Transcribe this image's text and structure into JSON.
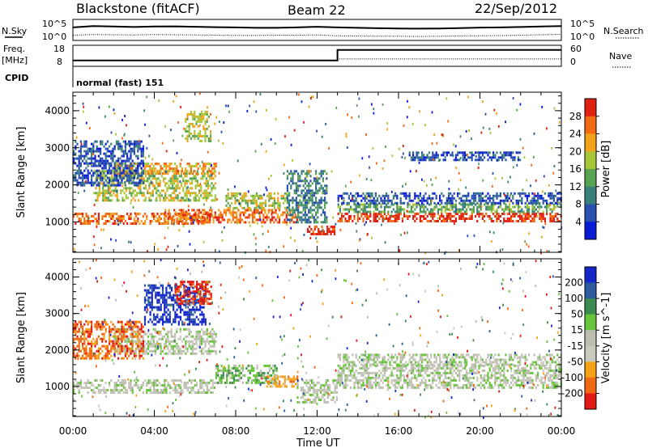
{
  "header": {
    "station": "Blackstone (fitACF)",
    "beam": "Beam 22",
    "date": "22/Sep/2012"
  },
  "top_panels": {
    "nsky_label": "N.Sky",
    "nsearch_label": "N.Search",
    "nsky_tick_hi": "10^5",
    "nsky_tick_lo": "10^0",
    "nsearch_tick_hi": "10^5",
    "nsearch_tick_lo": "10^0",
    "freq_label_1": "Freq.",
    "freq_label_2": "[MHz]",
    "freq_tick_hi": "18",
    "freq_tick_lo": "8",
    "nave_label": "Nave",
    "nave_tick_hi": "60",
    "nave_tick_lo": "0",
    "cpid_label": "CPID",
    "cpid_text": "normal (fast) 151"
  },
  "chart_data": [
    {
      "type": "heatmap",
      "name": "power",
      "ylabel": "Slant Range [km]",
      "xlabel": "Time UT",
      "x_ticks": [
        "00:00",
        "04:00",
        "08:00",
        "12:00",
        "16:00",
        "20:00",
        "00:00"
      ],
      "y_ticks": [
        1000,
        2000,
        3000,
        4000
      ],
      "xlim_hours": [
        0,
        24
      ],
      "ylim_km": [
        180,
        4500
      ],
      "colorbar": {
        "label": "Power [dB]",
        "ticks": [
          "4",
          "8",
          "12",
          "16",
          "20",
          "24",
          "28"
        ],
        "colors": [
          "#0a1bd6",
          "#2a4fb0",
          "#3a7f7a",
          "#58a352",
          "#a8c63a",
          "#f2a21c",
          "#f26a12",
          "#e02010"
        ]
      },
      "bands": [
        {
          "t0": 0.0,
          "t1": 6.8,
          "r0": 950,
          "r1": 1250,
          "level": 6
        },
        {
          "t0": 1.0,
          "t1": 7.0,
          "r0": 1600,
          "r1": 2400,
          "level": 4
        },
        {
          "t0": 2.0,
          "t1": 7.0,
          "r0": 2300,
          "r1": 2600,
          "level": 5
        },
        {
          "t0": 5.5,
          "t1": 6.8,
          "r0": 3200,
          "r1": 4000,
          "level": 4
        },
        {
          "t0": 0.0,
          "t1": 3.5,
          "r0": 2000,
          "r1": 3200,
          "level": 1
        },
        {
          "t0": 4.5,
          "t1": 11.0,
          "r0": 1000,
          "r1": 1350,
          "level": 6
        },
        {
          "t0": 7.5,
          "t1": 10.5,
          "r0": 1400,
          "r1": 1800,
          "level": 4
        },
        {
          "t0": 11.5,
          "t1": 13.0,
          "r0": 650,
          "r1": 900,
          "level": 7
        },
        {
          "t0": 10.5,
          "t1": 12.5,
          "r0": 1000,
          "r1": 2400,
          "level": 2
        },
        {
          "t0": 13.0,
          "t1": 24.0,
          "r0": 1000,
          "r1": 1250,
          "level": 7
        },
        {
          "t0": 13.0,
          "t1": 24.0,
          "r0": 1250,
          "r1": 1500,
          "level": 3
        },
        {
          "t0": 13.0,
          "t1": 24.0,
          "r0": 1500,
          "r1": 1800,
          "level": 1
        },
        {
          "t0": 16.5,
          "t1": 22.0,
          "r0": 2700,
          "r1": 2900,
          "level": 1
        }
      ]
    },
    {
      "type": "heatmap",
      "name": "velocity",
      "ylabel": "Slant Range [km]",
      "xlabel": "Time UT",
      "x_ticks": [
        "00:00",
        "04:00",
        "08:00",
        "12:00",
        "16:00",
        "20:00",
        "00:00"
      ],
      "y_ticks": [
        1000,
        2000,
        3000,
        4000
      ],
      "xlim_hours": [
        0,
        24
      ],
      "ylim_km": [
        180,
        4500
      ],
      "colorbar": {
        "label": "Velocity [m s^-1]",
        "ticks": [
          "200",
          "100",
          "50",
          "15",
          "-15",
          "-50",
          "-100",
          "-200"
        ],
        "colors": [
          "#1426c8",
          "#2b5a9e",
          "#3d8a50",
          "#68c43a",
          "#bdbdb2",
          "#c9c9bd",
          "#f5a216",
          "#f06812",
          "#e01a12"
        ]
      },
      "bands": [
        {
          "t0": 0.0,
          "t1": 7.0,
          "r0": 850,
          "r1": 1200,
          "level": 4
        },
        {
          "t0": 2.0,
          "t1": 7.0,
          "r0": 1900,
          "r1": 2600,
          "level": 4
        },
        {
          "t0": 0.0,
          "t1": 3.5,
          "r0": 1800,
          "r1": 2800,
          "level": 7
        },
        {
          "t0": 3.5,
          "t1": 6.5,
          "r0": 2700,
          "r1": 3800,
          "level": 0
        },
        {
          "t0": 5.0,
          "t1": 6.8,
          "r0": 3300,
          "r1": 3900,
          "level": 8
        },
        {
          "t0": 7.0,
          "t1": 10.0,
          "r0": 1100,
          "r1": 1600,
          "level": 3
        },
        {
          "t0": 9.5,
          "t1": 11.0,
          "r0": 1000,
          "r1": 1300,
          "level": 6
        },
        {
          "t0": 11.0,
          "t1": 13.0,
          "r0": 600,
          "r1": 1200,
          "level": 4
        },
        {
          "t0": 13.0,
          "t1": 24.0,
          "r0": 1000,
          "r1": 1600,
          "level": 4
        },
        {
          "t0": 13.0,
          "t1": 24.0,
          "r0": 1600,
          "r1": 1900,
          "level": 4
        }
      ]
    }
  ],
  "time_series": {
    "nsky_x": [
      0,
      1,
      2,
      3,
      4,
      5,
      6,
      7,
      8,
      9,
      10,
      11,
      12,
      13,
      14,
      15,
      16,
      17,
      18,
      19,
      20,
      21,
      22,
      23,
      24
    ],
    "nsky_frac": [
      0.62,
      0.68,
      0.66,
      0.64,
      0.66,
      0.67,
      0.65,
      0.63,
      0.62,
      0.6,
      0.6,
      0.62,
      0.65,
      0.62,
      0.6,
      0.58,
      0.57,
      0.56,
      0.57,
      0.59,
      0.61,
      0.62,
      0.64,
      0.66,
      0.68
    ],
    "nsearch_frac": [
      0.25,
      0.28,
      0.27,
      0.26,
      0.28,
      0.27,
      0.26,
      0.25,
      0.24,
      0.24,
      0.25,
      0.25,
      0.26,
      0.22,
      0.21,
      0.2,
      0.2,
      0.19,
      0.2,
      0.21,
      0.22,
      0.23,
      0.25,
      0.27,
      0.29
    ],
    "freq_step_hour": 13.0,
    "freq_before_frac": 0.28,
    "freq_after_frac": 0.78,
    "nave_frac": 0.35
  }
}
